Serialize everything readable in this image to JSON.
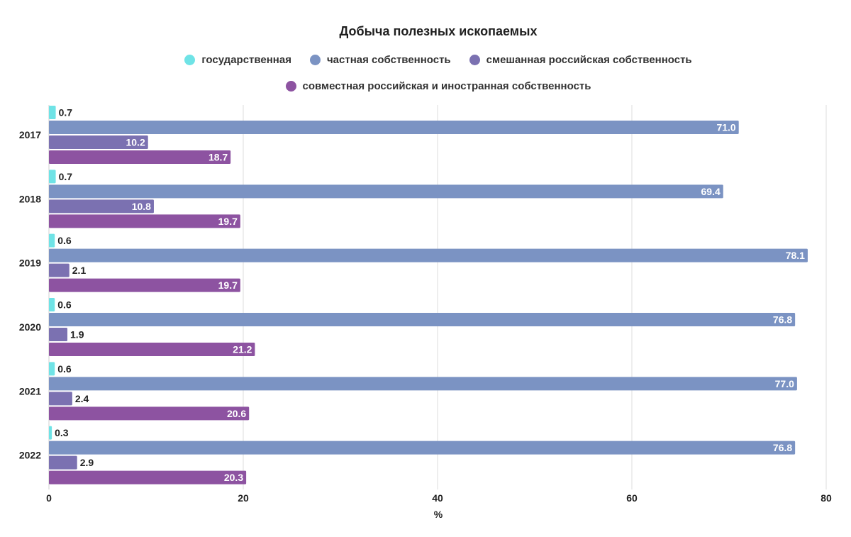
{
  "chart_data": {
    "type": "bar",
    "orientation": "horizontal",
    "title": "Добыча полезных ископаемых",
    "xlabel": "%",
    "ylabel": "",
    "xlim": [
      0,
      80
    ],
    "x_ticks": [
      "0",
      "20",
      "40",
      "60",
      "80"
    ],
    "grid": true,
    "legend_position": "top",
    "categories": [
      "2017",
      "2018",
      "2019",
      "2020",
      "2021",
      "2022"
    ],
    "series": [
      {
        "name": "государственная",
        "color": "#6fe3e6",
        "values": [
          0.7,
          0.7,
          0.6,
          0.6,
          0.6,
          0.3
        ]
      },
      {
        "name": "частная собственность",
        "color": "#7b93c3",
        "values": [
          71.0,
          69.4,
          78.1,
          76.8,
          77.0,
          76.8
        ]
      },
      {
        "name": "смешанная российская собственность",
        "color": "#7b71b1",
        "values": [
          10.2,
          10.8,
          2.1,
          1.9,
          2.4,
          2.9
        ]
      },
      {
        "name": "совместная российская и иностранная собственность",
        "color": "#8d53a1",
        "values": [
          18.7,
          19.7,
          19.7,
          21.2,
          20.6,
          20.3
        ]
      }
    ]
  }
}
